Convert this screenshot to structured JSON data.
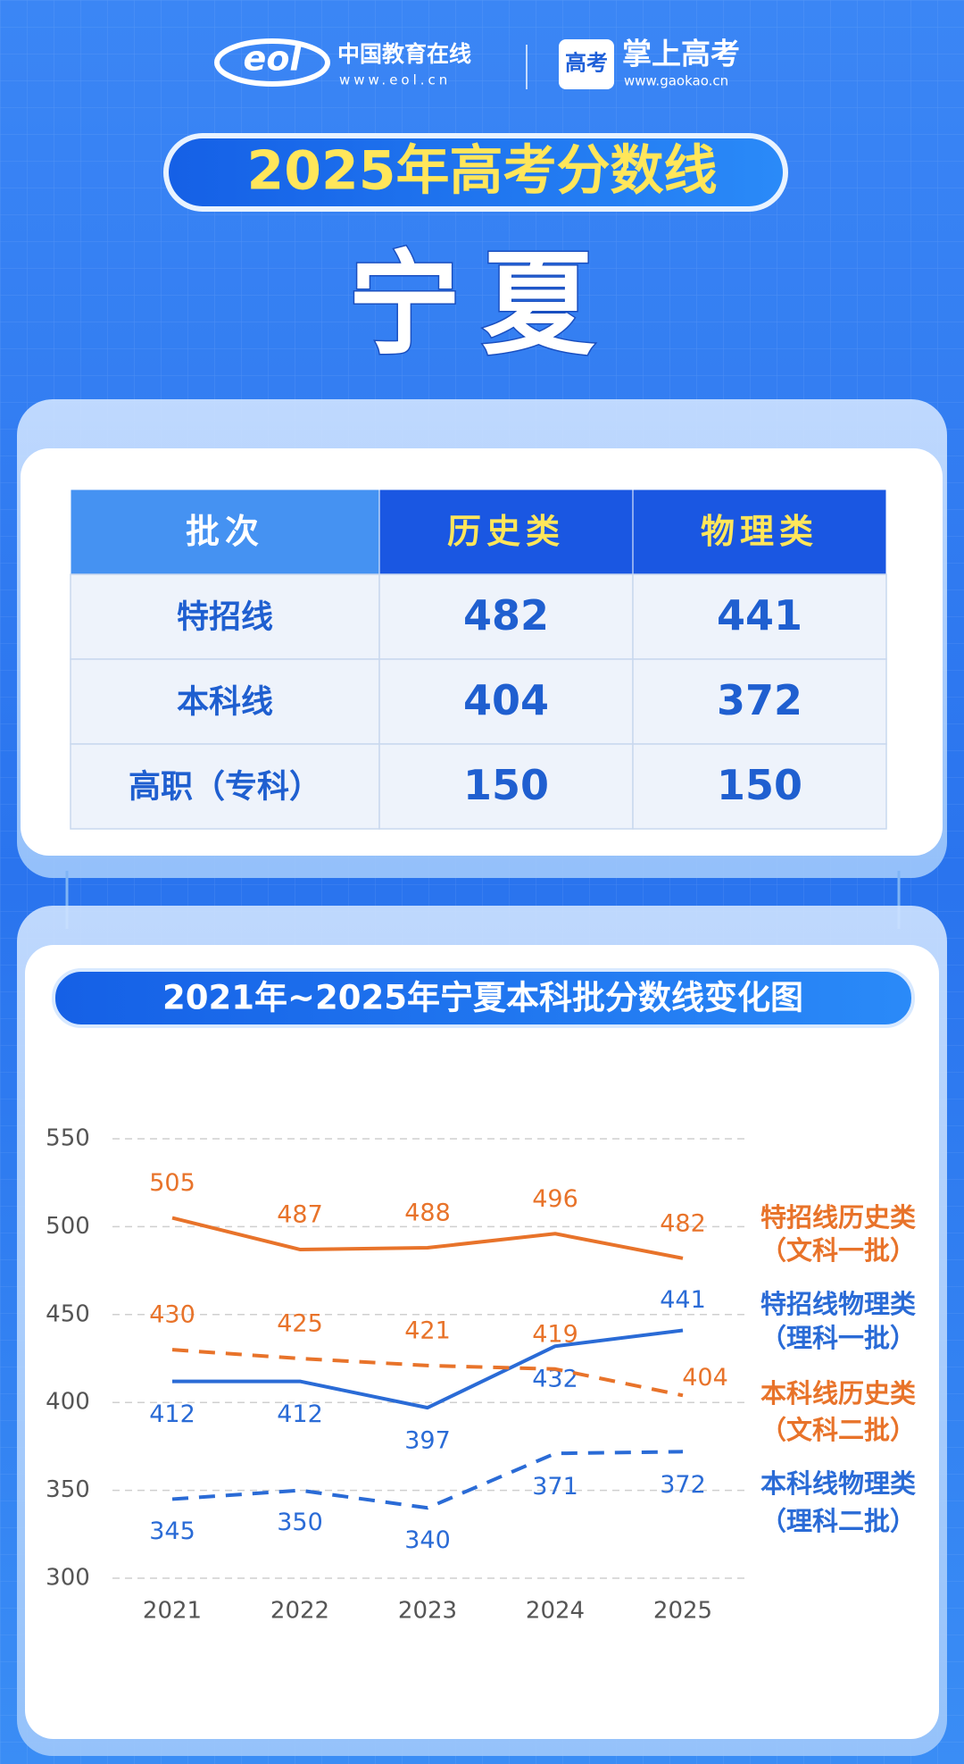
{
  "header": {
    "logo1_mark": "eol",
    "logo1_name": "中国教育在线",
    "logo1_url": "www.eol.cn",
    "logo2_mark": "高考",
    "logo2_name": "掌上高考",
    "logo2_url": "www.gaokao.cn"
  },
  "title": "2025年高考分数线",
  "province": "宁夏",
  "table": {
    "header": [
      "批次",
      "历史类",
      "物理类"
    ],
    "rows": [
      [
        "特招线",
        482,
        441
      ],
      [
        "本科线",
        404,
        372
      ],
      [
        "高职（专科）",
        150,
        150
      ]
    ]
  },
  "chart_data": {
    "type": "line",
    "title": "2021年~2025年宁夏本科批分数线变化图",
    "categories": [
      "2021",
      "2022",
      "2023",
      "2024",
      "2025"
    ],
    "ylim": [
      300,
      550
    ],
    "yticks": [
      300,
      350,
      400,
      450,
      500,
      550
    ],
    "grid": true,
    "series": [
      {
        "name": "特招线历史类",
        "alias": "（文科一批）",
        "color": "#e8732a",
        "dashed": false,
        "values": [
          505,
          487,
          488,
          496,
          482
        ]
      },
      {
        "name": "特招线物理类",
        "alias": "（理科一批）",
        "color": "#2a6bd6",
        "dashed": false,
        "values": [
          412,
          412,
          397,
          432,
          441
        ]
      },
      {
        "name": "本科线历史类",
        "alias": "（文科二批）",
        "color": "#e8732a",
        "dashed": true,
        "values": [
          430,
          425,
          421,
          419,
          404
        ]
      },
      {
        "name": "本科线物理类",
        "alias": "（理科二批）",
        "color": "#2a6bd6",
        "dashed": true,
        "values": [
          345,
          350,
          340,
          371,
          372
        ]
      }
    ]
  }
}
